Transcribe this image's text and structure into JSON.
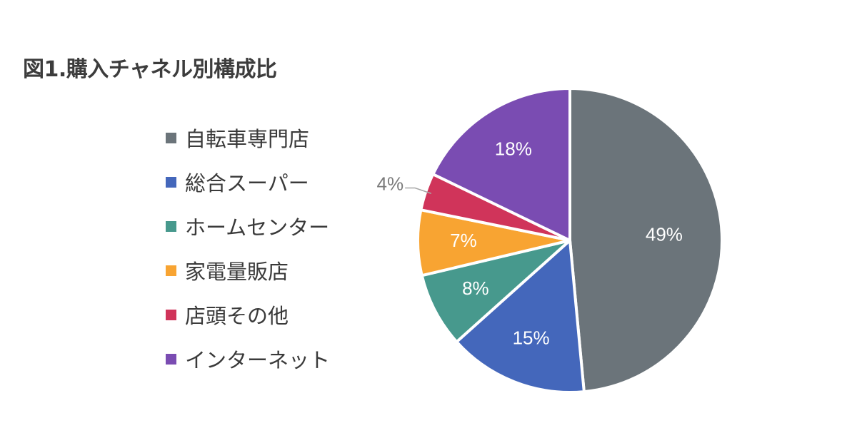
{
  "title": "図1.購入チャネル別構成比",
  "chart_data": {
    "type": "pie",
    "title": "図1.購入チャネル別構成比",
    "legend_position": "left",
    "slices": [
      {
        "name": "自転車専門店",
        "value": 49,
        "label": "49%",
        "color": "#6b747a"
      },
      {
        "name": "総合スーパー",
        "value": 15,
        "label": "15%",
        "color": "#4467bb"
      },
      {
        "name": "ホームセンター",
        "value": 8,
        "label": "8%",
        "color": "#47998d"
      },
      {
        "name": "家電量販店",
        "value": 7,
        "label": "7%",
        "color": "#f8a432"
      },
      {
        "name": "店頭その他",
        "value": 4,
        "label": "4%",
        "color": "#d0345a"
      },
      {
        "name": "インターネット",
        "value": 18,
        "label": "18%",
        "color": "#7a4cb2"
      }
    ]
  }
}
